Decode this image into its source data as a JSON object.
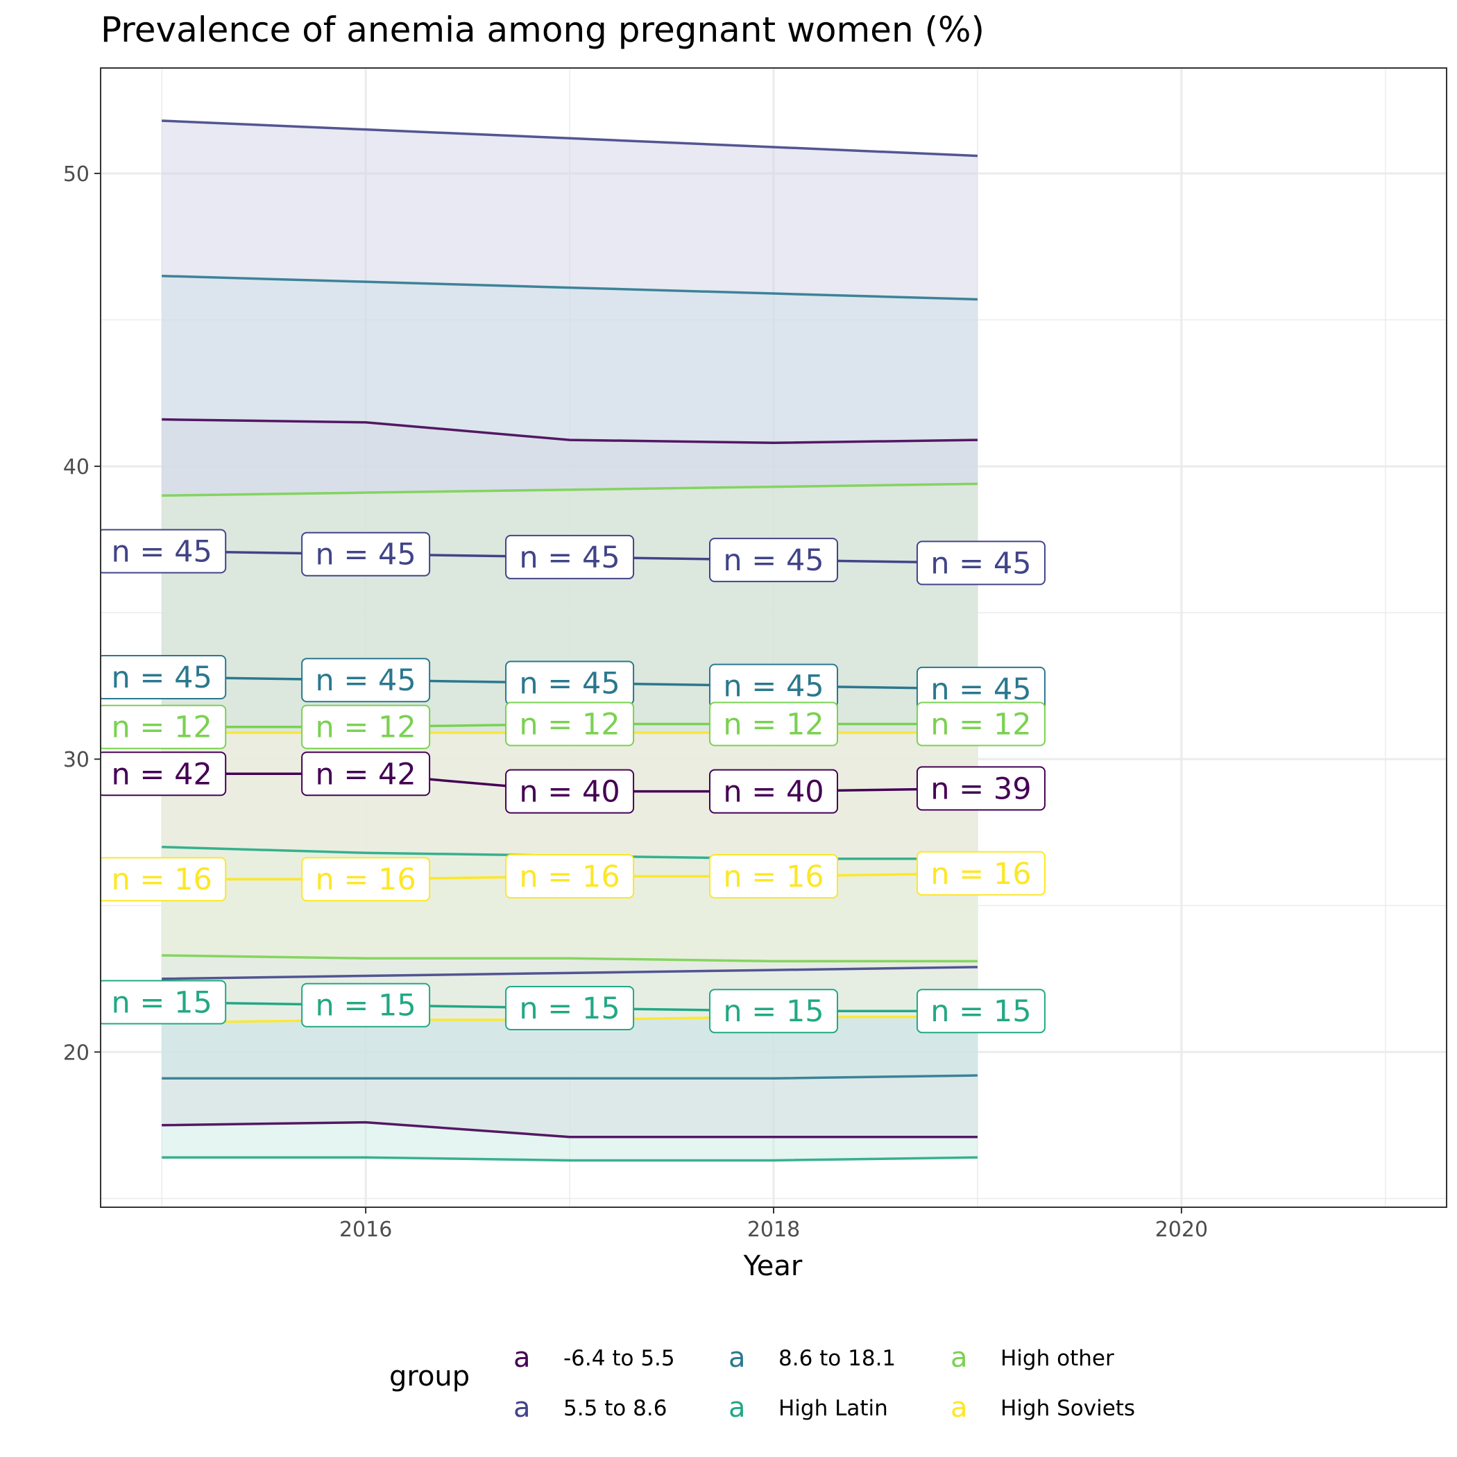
{
  "chart_data": {
    "type": "line",
    "title": "Prevalence of anemia among pregnant women (%)",
    "xlabel": "Year",
    "ylabel": "",
    "x": [
      2015,
      2016,
      2017,
      2018,
      2019
    ],
    "xlim": [
      2014.7,
      2021.3
    ],
    "ylim": [
      14.7,
      53.6
    ],
    "x_ticks": [
      2016,
      2018,
      2020
    ],
    "y_ticks": [
      20,
      30,
      40,
      50
    ],
    "grid": true,
    "legend_title": "group",
    "legend_position": "bottom",
    "legend_key_glyph": "a",
    "series": [
      {
        "name": "-6.4 to 5.5",
        "color": "#440154",
        "mean": [
          29.5,
          29.5,
          28.9,
          28.9,
          29.0
        ],
        "upper": [
          41.6,
          41.5,
          40.9,
          40.8,
          40.9
        ],
        "lower": [
          17.5,
          17.6,
          17.1,
          17.1,
          17.1
        ],
        "ribbon_fill": "#decee0",
        "n_labels": [
          "n = 42",
          "n = 42",
          "n = 40",
          "n = 40",
          "n = 39"
        ]
      },
      {
        "name": "5.5 to 8.6",
        "color": "#414487",
        "mean": [
          37.1,
          37.0,
          36.9,
          36.8,
          36.7
        ],
        "upper": [
          51.8,
          51.5,
          51.2,
          50.9,
          50.6
        ],
        "lower": [
          22.5,
          22.6,
          22.7,
          22.8,
          22.9
        ],
        "ribbon_fill": "#d2d4e6",
        "n_labels": [
          "n = 45",
          "n = 45",
          "n = 45",
          "n = 45",
          "n = 45"
        ]
      },
      {
        "name": "8.6 to 18.1",
        "color": "#2a788e",
        "mean": [
          32.8,
          32.7,
          32.6,
          32.5,
          32.4
        ],
        "upper": [
          46.5,
          46.3,
          46.1,
          45.9,
          45.7
        ],
        "lower": [
          19.1,
          19.1,
          19.1,
          19.1,
          19.2
        ],
        "ribbon_fill": "#cfe1e7",
        "n_labels": [
          "n = 45",
          "n = 45",
          "n = 45",
          "n = 45",
          "n = 45"
        ]
      },
      {
        "name": "High Latin",
        "color": "#22a884",
        "mean": [
          21.7,
          21.6,
          21.5,
          21.4,
          21.4
        ],
        "upper": [
          27.0,
          26.8,
          26.7,
          26.6,
          26.6
        ],
        "lower": [
          16.4,
          16.4,
          16.3,
          16.3,
          16.4
        ],
        "ribbon_fill": "#ccebe3",
        "n_labels": [
          "n = 15",
          "n = 15",
          "n = 15",
          "n = 15",
          "n = 15"
        ]
      },
      {
        "name": "High other",
        "color": "#7ad151",
        "mean": [
          31.1,
          31.1,
          31.2,
          31.2,
          31.2
        ],
        "upper": [
          39.0,
          39.1,
          39.2,
          39.3,
          39.4
        ],
        "lower": [
          23.3,
          23.2,
          23.2,
          23.1,
          23.1
        ],
        "ribbon_fill": "#dfefd3",
        "n_labels": [
          "n = 12",
          "n = 12",
          "n = 12",
          "n = 12",
          "n = 12"
        ]
      },
      {
        "name": "High Soviets",
        "color": "#fde725",
        "mean": [
          25.9,
          25.9,
          26.0,
          26.0,
          26.1
        ],
        "upper": [
          30.9,
          30.9,
          30.9,
          30.9,
          30.9
        ],
        "lower": [
          21.0,
          21.1,
          21.1,
          21.2,
          21.2
        ],
        "ribbon_fill": "#f7f4e2",
        "n_labels": [
          "n = 16",
          "n = 16",
          "n = 16",
          "n = 16",
          "n = 16"
        ]
      }
    ]
  }
}
